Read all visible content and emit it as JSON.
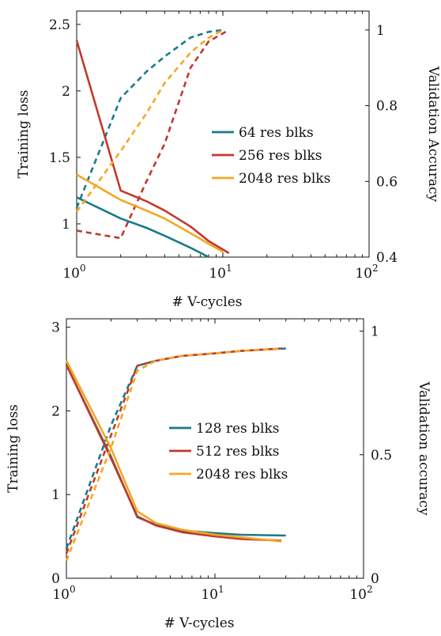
{
  "chart_data": [
    {
      "type": "line",
      "xscale": "log",
      "xlim": [
        1,
        100
      ],
      "x_ticks": [
        1,
        10,
        100
      ],
      "x_tick_labels": [
        [
          "10",
          "0"
        ],
        [
          "10",
          "1"
        ],
        [
          "10",
          "2"
        ]
      ],
      "xlabel": "# V-cycles",
      "ylabel": "Training loss",
      "ylim": [
        0.75,
        2.6
      ],
      "y_ticks": [
        1,
        1.5,
        2,
        2.5
      ],
      "y_tick_labels": [
        "1",
        "1.5",
        "2",
        "2.5"
      ],
      "y2label": "Validation Accuracy",
      "y2lim": [
        0.4,
        1.05
      ],
      "y2_ticks": [
        0.4,
        0.6,
        0.8,
        1
      ],
      "y2_tick_labels": [
        "0.4",
        "0.6",
        "0.8",
        "1"
      ],
      "legend_position": "center-right",
      "series": [
        {
          "name": "64 res blks",
          "color": "#1a7a8a",
          "loss": {
            "x": [
              1,
              2,
              3,
              4,
              6,
              8
            ],
            "y": [
              1.2,
              1.04,
              0.97,
              0.91,
              0.82,
              0.75
            ]
          },
          "accuracy": {
            "x": [
              1,
              2,
              3,
              4,
              6,
              8,
              10
            ],
            "y": [
              0.53,
              0.82,
              0.89,
              0.93,
              0.98,
              0.995,
              1.0
            ]
          }
        },
        {
          "name": "256 res blks",
          "color": "#c0392b",
          "loss": {
            "x": [
              1,
              2,
              3,
              4,
              6,
              8,
              11
            ],
            "y": [
              2.38,
              1.25,
              1.17,
              1.1,
              0.98,
              0.87,
              0.78
            ]
          },
          "accuracy": {
            "x": [
              1,
              2,
              3,
              4,
              6,
              8,
              11
            ],
            "y": [
              0.47,
              0.45,
              0.6,
              0.7,
              0.9,
              0.97,
              1.0
            ]
          }
        },
        {
          "name": "2048 res blks",
          "color": "#f5a623",
          "loss": {
            "x": [
              1,
              2,
              3,
              4,
              6,
              8,
              10
            ],
            "y": [
              1.37,
              1.18,
              1.1,
              1.04,
              0.93,
              0.85,
              0.79
            ]
          },
          "accuracy": {
            "x": [
              1,
              2,
              3,
              4,
              6,
              8,
              10
            ],
            "y": [
              0.52,
              0.68,
              0.78,
              0.86,
              0.94,
              0.98,
              1.0
            ]
          }
        }
      ]
    },
    {
      "type": "line",
      "xscale": "log",
      "xlim": [
        1,
        100
      ],
      "x_ticks": [
        1,
        10,
        100
      ],
      "x_tick_labels": [
        [
          "10",
          "0"
        ],
        [
          "10",
          "1"
        ],
        [
          "10",
          "2"
        ]
      ],
      "xlabel": "# V-cycles",
      "ylabel": "Training loss",
      "ylim": [
        0,
        3.1
      ],
      "y_ticks": [
        0,
        1,
        2,
        3
      ],
      "y_tick_labels": [
        "0",
        "1",
        "2",
        "3"
      ],
      "y2label": "Validation accuracy",
      "y2lim": [
        0,
        1.05
      ],
      "y2_ticks": [
        0,
        0.5,
        1
      ],
      "y2_tick_labels": [
        "0",
        "0.5",
        "1"
      ],
      "legend_position": "center-right",
      "series": [
        {
          "name": "128 res blks",
          "color": "#1a7a8a",
          "loss": {
            "x": [
              1,
              2,
              3,
              4,
              6,
              10,
              15,
              30
            ],
            "y": [
              2.55,
              1.45,
              0.73,
              0.64,
              0.57,
              0.54,
              0.52,
              0.51
            ]
          },
          "accuracy": {
            "x": [
              1,
              2,
              3,
              4,
              6,
              10,
              15,
              30
            ],
            "y": [
              0.12,
              0.62,
              0.86,
              0.88,
              0.9,
              0.91,
              0.92,
              0.93
            ]
          }
        },
        {
          "name": "512 res blks",
          "color": "#c0392b",
          "loss": {
            "x": [
              1,
              2,
              3,
              4,
              6,
              10,
              15,
              28
            ],
            "y": [
              2.55,
              1.43,
              0.74,
              0.63,
              0.55,
              0.5,
              0.47,
              0.45
            ]
          },
          "accuracy": {
            "x": [
              1,
              2,
              3,
              4,
              6,
              10,
              15,
              28
            ],
            "y": [
              0.1,
              0.58,
              0.86,
              0.88,
              0.9,
              0.91,
              0.92,
              0.93
            ]
          }
        },
        {
          "name": "2048 res blks",
          "color": "#f5a623",
          "loss": {
            "x": [
              1,
              2,
              3,
              4,
              6,
              10,
              15,
              28
            ],
            "y": [
              2.6,
              1.55,
              0.8,
              0.66,
              0.58,
              0.52,
              0.49,
              0.44
            ]
          },
          "accuracy": {
            "x": [
              1,
              2,
              3,
              4,
              6,
              10,
              15,
              28
            ],
            "y": [
              0.07,
              0.53,
              0.84,
              0.88,
              0.9,
              0.91,
              0.92,
              0.93
            ]
          }
        }
      ]
    }
  ]
}
